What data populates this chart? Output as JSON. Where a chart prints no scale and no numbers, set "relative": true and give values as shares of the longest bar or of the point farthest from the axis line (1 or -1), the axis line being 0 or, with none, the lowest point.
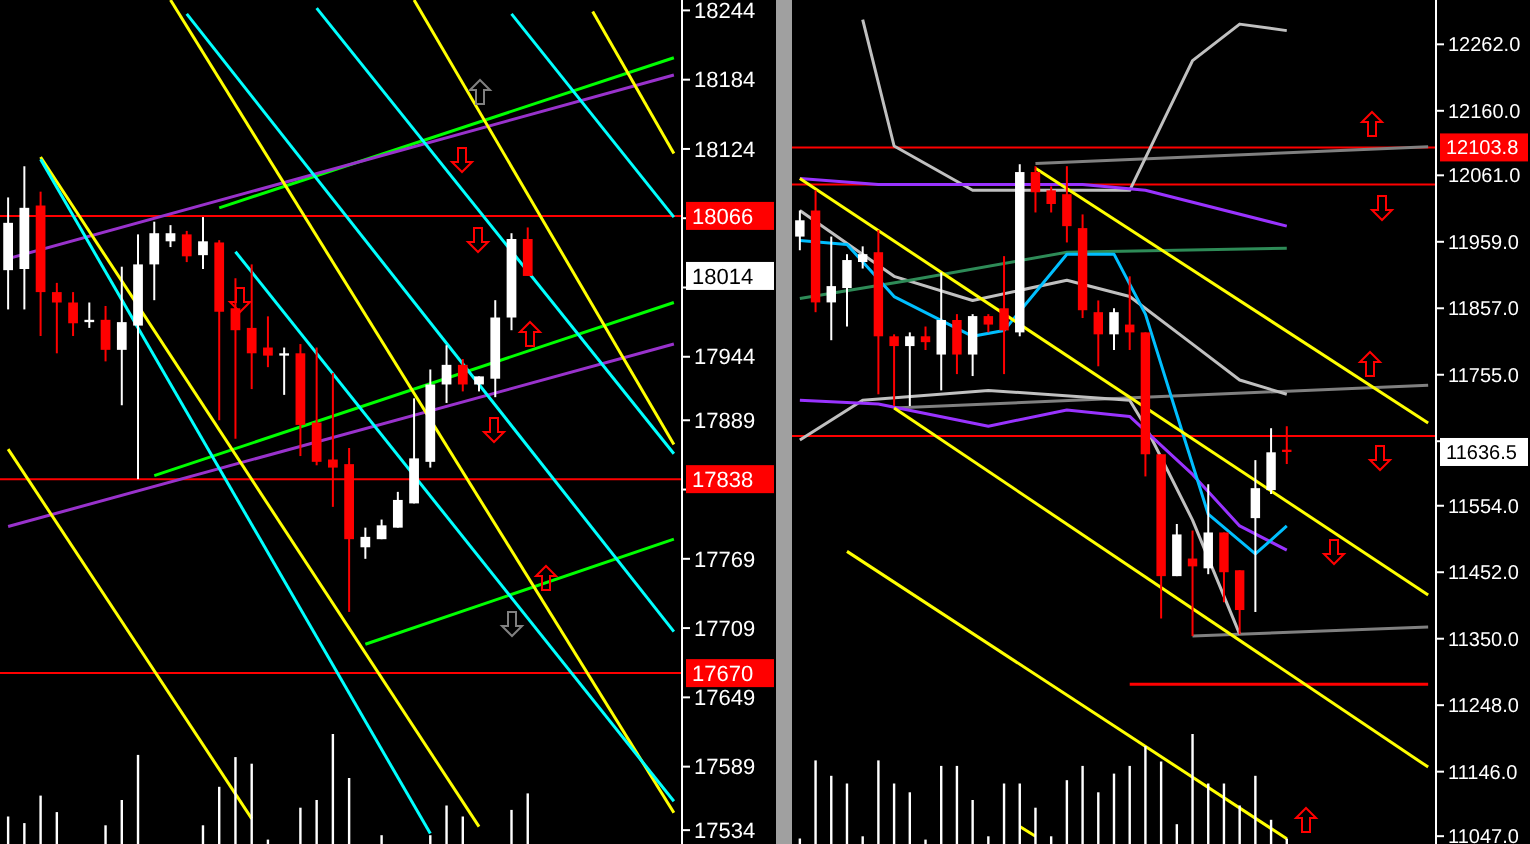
{
  "chart_data": [
    {
      "type": "candlestick",
      "categories": [
        null,
        null,
        null,
        null,
        null,
        null,
        null,
        null,
        null,
        null,
        null,
        null,
        null,
        null,
        null,
        null,
        null,
        null,
        null,
        null,
        null,
        null,
        null,
        null,
        null,
        null,
        null,
        null,
        null,
        null,
        null,
        null,
        null,
        null,
        null,
        null,
        null,
        null,
        null,
        null,
        null,
        null
      ],
      "ohlc": [
        [
          18019,
          18082,
          17985,
          18060
        ],
        [
          18020,
          18109,
          17985,
          18073
        ],
        [
          18075,
          18087,
          17962,
          18000
        ],
        [
          18000,
          18008,
          17947,
          17991
        ],
        [
          17991,
          18000,
          17962,
          17973
        ],
        [
          17974,
          17991,
          17969,
          17976
        ],
        [
          17976,
          17988,
          17940,
          17950
        ],
        [
          17950,
          18022,
          17902,
          17974
        ],
        [
          17971,
          18050,
          17838,
          18024
        ],
        [
          18024,
          18061,
          17993,
          18051
        ],
        [
          18044,
          18058,
          18039,
          18051
        ],
        [
          18050,
          18053,
          18026,
          18031
        ],
        [
          18032,
          18065,
          18020,
          18044
        ],
        [
          18043,
          18045,
          17889,
          17983
        ],
        [
          17986,
          18012,
          17873,
          17967
        ],
        [
          17969,
          18024,
          17916,
          17947
        ],
        [
          17952,
          17979,
          17935,
          17945
        ],
        [
          17945,
          17952,
          17911,
          17947
        ],
        [
          17947,
          17955,
          17858,
          17885
        ],
        [
          17887,
          17952,
          17850,
          17853
        ],
        [
          17855,
          17930,
          17814,
          17848
        ],
        [
          17851,
          17865,
          17723,
          17786
        ],
        [
          17779,
          17796,
          17769,
          17788
        ],
        [
          17786,
          17803,
          17786,
          17798
        ],
        [
          17796,
          17827,
          17796,
          17820
        ],
        [
          17817,
          17908,
          17817,
          17856
        ],
        [
          17853,
          17933,
          17848,
          17920
        ],
        [
          17920,
          17954,
          17904,
          17937
        ],
        [
          17937,
          17942,
          17914,
          17920
        ],
        [
          17920,
          17927,
          17914,
          17927
        ],
        [
          17925,
          17993,
          17909,
          17978
        ],
        [
          17978,
          18051,
          17967,
          18046
        ],
        [
          18046,
          18056,
          18014,
          18014
        ],
        null,
        null,
        null,
        null,
        null,
        null,
        null,
        null,
        null
      ],
      "ylim": [
        17522,
        18253
      ],
      "yticks": [
        18244,
        18184,
        18124,
        {
          "value": 18064,
          "label": null
        },
        {
          "value": 18004,
          "label": null
        },
        17944,
        17889,
        {
          "value": 17829,
          "label": null
        },
        17769,
        17709,
        17649,
        17589,
        17534
      ],
      "tick_labels": "y",
      "ref_lines": [
        {
          "axis": "y",
          "value": 18066,
          "label": "18066",
          "color": "#ff0000"
        },
        {
          "axis": "y",
          "value": 17838,
          "label": "17838",
          "color": "#ff0000"
        },
        {
          "axis": "y",
          "value": 17670,
          "label": "17670",
          "color": "#ff0000"
        }
      ],
      "annotations": [
        "18014"
      ],
      "series": [
        {
          "type": "line",
          "color": "#00ff00",
          "values": [
            null,
            null,
            null,
            null,
            null,
            null,
            null,
            null,
            null,
            null,
            null,
            null,
            null,
            18073,
            null,
            null,
            null,
            null,
            null,
            null,
            null,
            null,
            null,
            null,
            null,
            null,
            null,
            null,
            null,
            null,
            null,
            null,
            null,
            null,
            null,
            null,
            null,
            null,
            null,
            null,
            null,
            18203
          ]
        },
        {
          "type": "line",
          "color": "#00ff00",
          "values": [
            null,
            null,
            null,
            null,
            null,
            null,
            null,
            null,
            null,
            17841,
            null,
            null,
            null,
            null,
            null,
            null,
            null,
            null,
            null,
            null,
            null,
            null,
            null,
            null,
            null,
            null,
            null,
            null,
            null,
            null,
            null,
            null,
            null,
            null,
            null,
            null,
            null,
            null,
            null,
            null,
            null,
            17991
          ]
        },
        {
          "type": "line",
          "color": "#00ff00",
          "values": [
            null,
            null,
            null,
            null,
            null,
            null,
            null,
            null,
            null,
            null,
            null,
            null,
            null,
            null,
            null,
            null,
            null,
            null,
            null,
            null,
            null,
            null,
            17695,
            null,
            null,
            null,
            null,
            null,
            null,
            null,
            null,
            null,
            null,
            null,
            null,
            null,
            null,
            null,
            null,
            null,
            null,
            17786
          ]
        },
        {
          "type": "line",
          "color": "#9932cc",
          "values": [
            18029,
            null,
            null,
            null,
            null,
            null,
            null,
            null,
            null,
            null,
            null,
            null,
            null,
            null,
            null,
            null,
            null,
            null,
            null,
            null,
            null,
            null,
            null,
            null,
            null,
            null,
            null,
            null,
            null,
            null,
            null,
            null,
            null,
            null,
            null,
            null,
            null,
            null,
            null,
            null,
            null,
            18188
          ]
        },
        {
          "type": "line",
          "color": "#9932cc",
          "values": [
            17797,
            null,
            null,
            null,
            null,
            null,
            null,
            null,
            null,
            null,
            null,
            null,
            null,
            null,
            null,
            null,
            null,
            null,
            null,
            null,
            null,
            null,
            null,
            null,
            null,
            null,
            null,
            null,
            null,
            null,
            null,
            null,
            null,
            null,
            null,
            null,
            null,
            null,
            null,
            null,
            null,
            17955
          ]
        },
        {
          "type": "line",
          "color": "#ffff00",
          "values": [
            null,
            null,
            18117,
            null,
            null,
            null,
            null,
            null,
            null,
            null,
            null,
            null,
            null,
            null,
            null,
            null,
            null,
            null,
            null,
            null,
            null,
            null,
            null,
            null,
            null,
            null,
            null,
            null,
            null,
            17537,
            null,
            null,
            null,
            null,
            null,
            null,
            null,
            null,
            null,
            null,
            null,
            null
          ]
        },
        {
          "type": "line",
          "color": "#ffff00",
          "values": [
            17864,
            null,
            null,
            null,
            null,
            null,
            null,
            null,
            null,
            null,
            null,
            null,
            null,
            null,
            null,
            17544,
            null,
            null,
            null,
            null,
            null,
            null,
            null,
            null,
            null,
            null,
            null,
            null,
            null,
            null,
            null,
            null,
            null,
            null,
            null,
            null,
            null,
            null,
            null,
            null,
            null,
            null
          ]
        },
        {
          "type": "line",
          "color": "#ffff00",
          "values": [
            null,
            null,
            null,
            null,
            null,
            null,
            null,
            null,
            null,
            null,
            18253,
            null,
            null,
            null,
            null,
            null,
            null,
            null,
            null,
            null,
            null,
            null,
            null,
            null,
            null,
            null,
            null,
            null,
            null,
            null,
            null,
            null,
            null,
            null,
            null,
            null,
            null,
            null,
            null,
            null,
            null,
            17549
          ]
        },
        {
          "type": "line",
          "color": "#ffff00",
          "values": [
            null,
            null,
            null,
            null,
            null,
            null,
            null,
            null,
            null,
            null,
            null,
            null,
            null,
            null,
            null,
            null,
            null,
            null,
            null,
            null,
            null,
            null,
            null,
            null,
            null,
            18253,
            null,
            null,
            null,
            null,
            null,
            null,
            null,
            null,
            null,
            null,
            null,
            null,
            null,
            null,
            null,
            17868
          ]
        },
        {
          "type": "line",
          "color": "#ffff00",
          "values": [
            null,
            null,
            null,
            null,
            null,
            null,
            null,
            null,
            null,
            null,
            null,
            null,
            null,
            null,
            null,
            null,
            null,
            null,
            null,
            null,
            null,
            null,
            null,
            null,
            null,
            null,
            null,
            null,
            null,
            null,
            null,
            null,
            null,
            null,
            null,
            null,
            18243,
            null,
            null,
            null,
            null,
            18120
          ]
        },
        {
          "type": "line",
          "color": "#00ffff",
          "values": [
            null,
            null,
            18115,
            null,
            null,
            null,
            null,
            null,
            null,
            null,
            null,
            null,
            null,
            null,
            null,
            null,
            null,
            null,
            null,
            null,
            null,
            null,
            null,
            null,
            null,
            null,
            17531,
            null,
            null,
            null,
            null,
            null,
            null,
            null,
            null,
            null,
            null,
            null,
            null,
            null,
            null,
            null
          ]
        },
        {
          "type": "line",
          "color": "#00ffff",
          "values": [
            null,
            null,
            null,
            null,
            null,
            null,
            null,
            null,
            null,
            null,
            null,
            null,
            null,
            null,
            18035,
            null,
            null,
            null,
            null,
            null,
            null,
            null,
            null,
            null,
            null,
            null,
            null,
            null,
            null,
            null,
            null,
            null,
            null,
            null,
            null,
            null,
            null,
            null,
            null,
            null,
            null,
            17559
          ]
        },
        {
          "type": "line",
          "color": "#00ffff",
          "values": [
            null,
            null,
            null,
            null,
            null,
            null,
            null,
            null,
            null,
            null,
            null,
            null,
            null,
            null,
            null,
            null,
            null,
            null,
            null,
            18246,
            null,
            null,
            null,
            null,
            null,
            null,
            null,
            null,
            null,
            null,
            null,
            null,
            null,
            null,
            null,
            null,
            null,
            null,
            null,
            null,
            null,
            17860
          ]
        },
        {
          "type": "line",
          "color": "#00ffff",
          "values": [
            null,
            null,
            null,
            null,
            null,
            null,
            null,
            null,
            null,
            null,
            null,
            18241,
            null,
            null,
            null,
            null,
            null,
            null,
            null,
            null,
            null,
            null,
            null,
            null,
            null,
            null,
            null,
            null,
            null,
            null,
            null,
            null,
            null,
            null,
            null,
            null,
            null,
            null,
            null,
            null,
            null,
            17706
          ]
        },
        {
          "type": "line",
          "color": "#00ffff",
          "values": [
            null,
            null,
            null,
            null,
            null,
            null,
            null,
            null,
            null,
            null,
            null,
            null,
            null,
            null,
            null,
            null,
            null,
            null,
            null,
            null,
            null,
            null,
            null,
            null,
            null,
            null,
            null,
            null,
            null,
            null,
            null,
            18241,
            null,
            null,
            null,
            null,
            null,
            null,
            null,
            null,
            null,
            18065
          ]
        }
      ]
    },
    {
      "type": "bar",
      "relative": true,
      "color": "#ffffff",
      "categories": [
        null,
        null,
        null,
        null,
        null,
        null,
        null,
        null,
        null,
        null,
        null,
        null,
        null,
        null,
        null,
        null,
        null,
        null,
        null,
        null,
        null,
        null,
        null,
        null,
        null,
        null,
        null,
        null,
        null,
        null,
        null,
        null,
        null,
        null,
        null,
        null,
        null,
        null,
        null,
        null,
        null,
        null
      ],
      "values": [
        0.25,
        0.19,
        0.44,
        0.29,
        null,
        null,
        0.17,
        0.4,
        0.81,
        null,
        null,
        null,
        0.17,
        0.52,
        0.79,
        0.73,
        0.04,
        null,
        0.33,
        0.4,
        1,
        0.6,
        null,
        0.08,
        null,
        null,
        0.08,
        0.35,
        0.25,
        null,
        null,
        0.31,
        0.46,
        null,
        null,
        null,
        null,
        null,
        null,
        null,
        null,
        null
      ]
    },
    {
      "type": "candlestick",
      "categories": [
        null,
        null,
        null,
        null,
        null,
        null,
        null,
        null,
        null,
        null,
        null,
        null,
        null,
        null,
        null,
        null,
        null,
        null,
        null,
        null,
        null,
        null,
        null,
        null,
        null,
        null,
        null,
        null,
        null,
        null,
        null,
        null,
        null,
        null,
        null,
        null,
        null,
        null,
        null,
        null,
        null
      ],
      "ohlc": [
        [
          11967,
          12007,
          11946,
          11992
        ],
        [
          12007,
          12038,
          11851,
          11866
        ],
        [
          11866,
          11967,
          11808,
          11891
        ],
        [
          11888,
          11940,
          11829,
          11931
        ],
        [
          11928,
          11952,
          11918,
          11940
        ],
        [
          11943,
          11977,
          11725,
          11814
        ],
        [
          11814,
          11817,
          11707,
          11799
        ],
        [
          11799,
          11820,
          11707,
          11814
        ],
        [
          11814,
          11829,
          11793,
          11805
        ],
        [
          11786,
          11912,
          11731,
          11839
        ],
        [
          11839,
          11848,
          11756,
          11786
        ],
        [
          11786,
          11848,
          11753,
          11845
        ],
        [
          11845,
          11848,
          11820,
          11832
        ],
        [
          11857,
          11937,
          11756,
          11823
        ],
        [
          11820,
          12078,
          11814,
          12066
        ],
        [
          12066,
          12075,
          12004,
          12035
        ],
        [
          12038,
          12044,
          12004,
          12017
        ],
        [
          12032,
          12075,
          11958,
          11983
        ],
        [
          11980,
          12001,
          11842,
          11854
        ],
        [
          11851,
          11869,
          11768,
          11817
        ],
        [
          11817,
          11857,
          11793,
          11851
        ],
        [
          11832,
          11906,
          11793,
          11820
        ],
        [
          11820,
          11820,
          11599,
          11633
        ],
        [
          11633,
          11633,
          11381,
          11446
        ],
        [
          11446,
          11526,
          11446,
          11510
        ],
        [
          11473,
          11516,
          11354,
          11461
        ],
        [
          11458,
          11587,
          11449,
          11513
        ],
        [
          11513,
          11513,
          11406,
          11452
        ],
        [
          11455,
          11455,
          11357,
          11394
        ],
        [
          11535,
          11624,
          11391,
          11581
        ],
        [
          11578,
          11673,
          11572,
          11636
        ],
        [
          11640,
          11676,
          11618,
          11636.5
        ],
        null,
        null,
        null,
        null,
        null,
        null,
        null,
        null,
        null
      ],
      "ylim": [
        11035,
        12330
      ],
      "yticks": [
        {
          "value": 12262,
          "label": "12262.0"
        },
        {
          "value": 12160,
          "label": "12160.0"
        },
        {
          "value": 12061,
          "label": "12061.0"
        },
        {
          "value": 11959,
          "label": "11959.0"
        },
        {
          "value": 11857,
          "label": "11857.0"
        },
        {
          "value": 11755,
          "label": "11755.0"
        },
        {
          "value": 11653,
          "label": null
        },
        {
          "value": 11554,
          "label": "11554.0"
        },
        {
          "value": 11452,
          "label": "11452.0"
        },
        {
          "value": 11350,
          "label": "11350.0"
        },
        {
          "value": 11248,
          "label": "11248.0"
        },
        {
          "value": 11146,
          "label": "11146.0"
        },
        {
          "value": 11047,
          "label": "11047.0"
        }
      ],
      "tick_labels": "y",
      "ref_lines": [
        {
          "axis": "y",
          "value": 12103.8,
          "label": "12103.8",
          "color": "#ff0000"
        },
        {
          "axis": "y",
          "value": 12047,
          "label": null,
          "color": "#ff0000"
        },
        {
          "axis": "y",
          "value": 11661,
          "label": null,
          "color": "#ff0000"
        }
      ],
      "annotations": [
        "11636.5"
      ],
      "series": [
        {
          "type": "line",
          "color": "#ff0000",
          "values": [
            null,
            null,
            null,
            null,
            null,
            null,
            null,
            null,
            null,
            null,
            null,
            null,
            null,
            null,
            null,
            null,
            null,
            null,
            null,
            null,
            null,
            11280,
            null,
            null,
            null,
            null,
            null,
            null,
            null,
            null,
            null,
            null,
            null,
            null,
            null,
            null,
            null,
            null,
            null,
            null,
            11280
          ]
        },
        {
          "type": "line",
          "color": "#808080",
          "values": [
            null,
            null,
            null,
            null,
            null,
            null,
            null,
            null,
            null,
            null,
            null,
            null,
            null,
            null,
            null,
            12079,
            null,
            null,
            null,
            null,
            null,
            null,
            null,
            null,
            null,
            null,
            null,
            null,
            null,
            null,
            null,
            null,
            null,
            null,
            null,
            null,
            null,
            null,
            null,
            null,
            12105
          ]
        },
        {
          "type": "line",
          "color": "#808080",
          "values": [
            null,
            null,
            null,
            null,
            null,
            null,
            11704,
            null,
            null,
            null,
            null,
            null,
            null,
            null,
            null,
            null,
            null,
            null,
            null,
            null,
            null,
            null,
            null,
            null,
            null,
            null,
            null,
            null,
            null,
            null,
            null,
            null,
            null,
            null,
            null,
            null,
            null,
            null,
            null,
            null,
            11739
          ]
        },
        {
          "type": "line",
          "color": "#808080",
          "values": [
            null,
            null,
            null,
            null,
            null,
            null,
            null,
            null,
            null,
            null,
            null,
            null,
            null,
            null,
            null,
            null,
            null,
            null,
            null,
            null,
            null,
            null,
            null,
            null,
            null,
            11354,
            null,
            null,
            null,
            null,
            null,
            null,
            null,
            null,
            null,
            null,
            null,
            null,
            null,
            null,
            11368
          ]
        },
        {
          "type": "line",
          "color": "#c0c0c0",
          "values": [
            null,
            null,
            null,
            null,
            12300,
            null,
            12106,
            null,
            null,
            null,
            null,
            12038,
            null,
            null,
            null,
            null,
            null,
            null,
            null,
            null,
            null,
            12038,
            null,
            null,
            null,
            12237,
            null,
            null,
            12293,
            null,
            null,
            12283,
            null,
            null,
            null,
            null,
            null,
            null,
            null,
            null,
            null
          ]
        },
        {
          "type": "line",
          "color": "#c0c0c0",
          "values": [
            12007,
            null,
            null,
            null,
            null,
            null,
            11906,
            null,
            null,
            null,
            null,
            11869,
            null,
            null,
            null,
            null,
            null,
            11900,
            null,
            null,
            null,
            11875,
            null,
            null,
            null,
            11802,
            null,
            null,
            11747,
            null,
            null,
            11725,
            null,
            null,
            null,
            null,
            null,
            null,
            null,
            null,
            null
          ]
        },
        {
          "type": "line",
          "color": "#c0c0c0",
          "values": [
            11655,
            null,
            null,
            null,
            11716,
            null,
            null,
            null,
            null,
            null,
            null,
            null,
            11731,
            null,
            null,
            null,
            null,
            null,
            null,
            null,
            null,
            11716,
            11676,
            null,
            null,
            11532,
            null,
            null,
            11357,
            null,
            null,
            null,
            null,
            null,
            null,
            null,
            null,
            null,
            null,
            null,
            null
          ]
        },
        {
          "type": "line",
          "color": "#9933ff",
          "values": [
            12056,
            null,
            null,
            null,
            null,
            12047,
            null,
            null,
            null,
            null,
            null,
            12047,
            null,
            null,
            null,
            null,
            null,
            null,
            12047,
            null,
            null,
            null,
            12038,
            null,
            null,
            null,
            null,
            null,
            null,
            null,
            null,
            11983,
            null,
            null,
            null,
            null,
            null,
            null,
            null,
            null,
            null
          ]
        },
        {
          "type": "line",
          "color": "#9933ff",
          "values": [
            11716,
            null,
            null,
            null,
            null,
            11710,
            null,
            null,
            null,
            null,
            null,
            null,
            11676,
            null,
            null,
            null,
            null,
            11701,
            null,
            null,
            null,
            11691,
            null,
            null,
            null,
            11602,
            null,
            null,
            11523,
            null,
            null,
            11486,
            null,
            null,
            null,
            null,
            null,
            null,
            null,
            null,
            null
          ]
        },
        {
          "type": "line",
          "color": "#2e8b57",
          "values": [
            11872,
            null,
            null,
            null,
            null,
            null,
            null,
            11900,
            null,
            null,
            null,
            null,
            null,
            null,
            null,
            null,
            null,
            11943,
            null,
            null,
            null,
            null,
            null,
            null,
            null,
            null,
            null,
            null,
            null,
            null,
            null,
            11949,
            null,
            null,
            null,
            null,
            null,
            null,
            null,
            null,
            null
          ]
        },
        {
          "type": "line",
          "color": "#00bfff",
          "values": [
            11961,
            null,
            null,
            11955,
            null,
            null,
            11875,
            null,
            null,
            null,
            null,
            11814,
            null,
            11823,
            null,
            null,
            null,
            11940,
            null,
            null,
            11940,
            null,
            11848,
            null,
            11694,
            null,
            11541,
            null,
            null,
            11480,
            null,
            11523,
            null,
            null,
            null,
            null,
            null,
            null,
            null,
            null,
            null
          ]
        },
        {
          "type": "line",
          "color": "#ffff00",
          "values": [
            12056,
            null,
            null,
            null,
            null,
            null,
            null,
            null,
            null,
            null,
            null,
            null,
            null,
            null,
            null,
            null,
            null,
            null,
            null,
            null,
            null,
            null,
            null,
            null,
            null,
            null,
            null,
            null,
            null,
            null,
            null,
            null,
            null,
            null,
            null,
            null,
            null,
            null,
            null,
            null,
            11417
          ]
        },
        {
          "type": "line",
          "color": "#ffff00",
          "values": [
            null,
            null,
            null,
            null,
            null,
            null,
            null,
            null,
            null,
            null,
            null,
            null,
            null,
            null,
            null,
            12072,
            null,
            null,
            null,
            null,
            null,
            null,
            null,
            null,
            null,
            null,
            null,
            null,
            null,
            null,
            null,
            null,
            null,
            null,
            null,
            null,
            null,
            null,
            null,
            null,
            11681
          ]
        },
        {
          "type": "line",
          "color": "#ffff00",
          "values": [
            null,
            null,
            null,
            null,
            null,
            null,
            11704,
            null,
            null,
            null,
            null,
            null,
            null,
            null,
            null,
            null,
            null,
            null,
            null,
            null,
            null,
            null,
            null,
            null,
            null,
            null,
            null,
            null,
            null,
            null,
            null,
            null,
            null,
            null,
            null,
            null,
            null,
            null,
            null,
            null,
            11153
          ]
        },
        {
          "type": "line",
          "color": "#ffff00",
          "values": [
            null,
            null,
            null,
            11484,
            null,
            null,
            null,
            null,
            null,
            null,
            null,
            null,
            null,
            null,
            null,
            null,
            null,
            null,
            null,
            null,
            null,
            null,
            null,
            null,
            null,
            null,
            null,
            null,
            null,
            null,
            null,
            11043,
            null,
            null,
            null,
            null,
            null,
            null,
            null,
            null,
            null
          ]
        },
        {
          "type": "line",
          "color": "#ffff00",
          "values": [
            null,
            null,
            null,
            null,
            null,
            null,
            null,
            null,
            null,
            null,
            null,
            null,
            null,
            null,
            11062,
            11047,
            null,
            null,
            null,
            null,
            null,
            null,
            null,
            null,
            null,
            null,
            null,
            null,
            null,
            null,
            null,
            null,
            null,
            null,
            null,
            null,
            null,
            null,
            null,
            null,
            null
          ]
        }
      ]
    },
    {
      "type": "bar",
      "relative": true,
      "color": "#ffffff",
      "categories": [
        null,
        null,
        null,
        null,
        null,
        null,
        null,
        null,
        null,
        null,
        null,
        null,
        null,
        null,
        null,
        null,
        null,
        null,
        null,
        null,
        null,
        null,
        null,
        null,
        null,
        null,
        null,
        null,
        null,
        null,
        null,
        null,
        null,
        null,
        null,
        null,
        null,
        null,
        null,
        null,
        null
      ],
      "values": [
        0.05,
        0.76,
        0.62,
        0.55,
        0.07,
        0.76,
        0.55,
        0.47,
        0.04,
        0.71,
        0.71,
        0.4,
        0.07,
        0.55,
        0.55,
        0.33,
        0.07,
        0.58,
        0.71,
        0.47,
        0.64,
        0.71,
        0.89,
        0.75,
        0.18,
        1,
        0.55,
        0.55,
        0.35,
        0.62,
        0.22,
        0.05,
        null,
        null,
        null,
        null,
        null,
        null,
        null,
        null,
        null
      ]
    }
  ]
}
